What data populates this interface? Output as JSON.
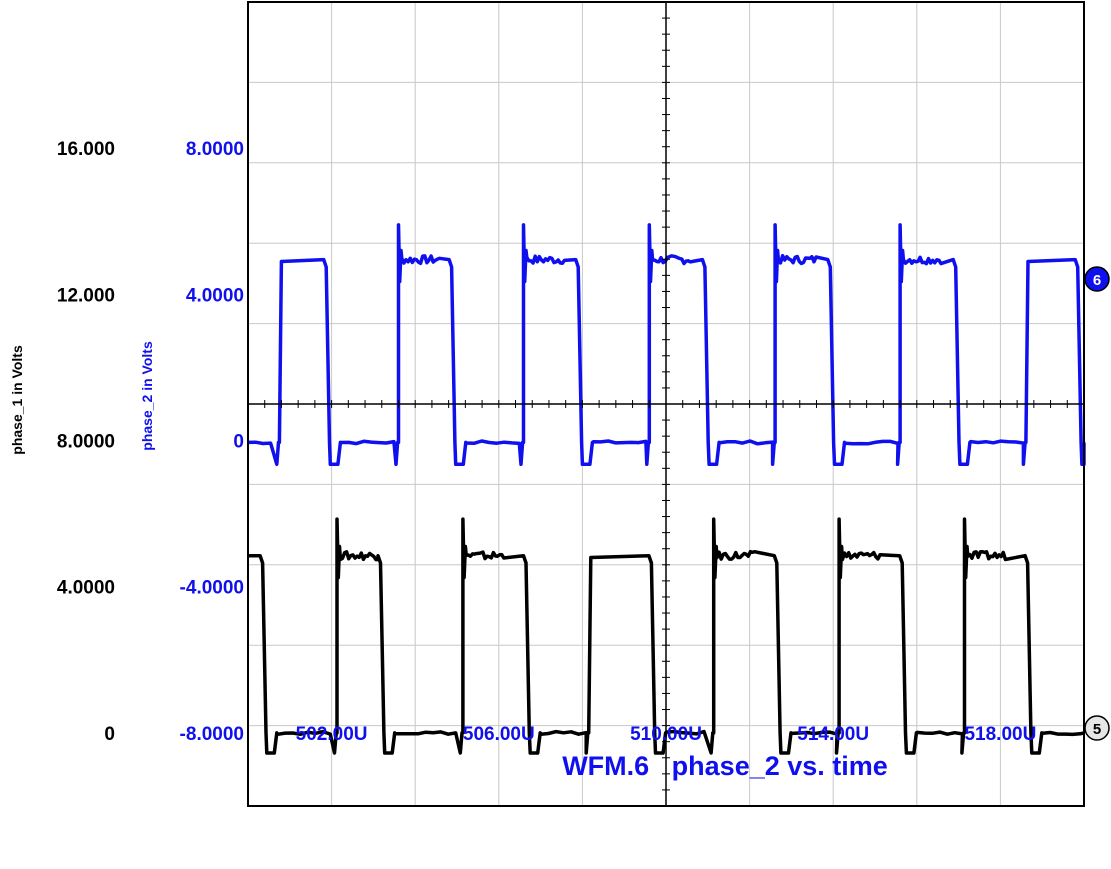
{
  "chart_data": {
    "type": "line",
    "title": "WFM.6   phase_2 vs. time",
    "x_range": [
      500.0,
      520.0
    ],
    "x_unit": "U",
    "x_ticks": [
      502,
      506,
      510,
      514,
      518
    ],
    "x_tick_labels": [
      "502.00U",
      "506.00U",
      "510.00U",
      "514.00U",
      "518.00U"
    ],
    "grid": true,
    "axes": [
      {
        "name": "phase_1",
        "label": "phase_1 in Volts",
        "color": "#000000",
        "range": [
          -2.0,
          20.0
        ],
        "tick_values": [
          0,
          4,
          8,
          12,
          16
        ],
        "tick_labels": [
          "0",
          "4.0000",
          "8.0000",
          "12.000",
          "16.000"
        ]
      },
      {
        "name": "phase_2",
        "label": "phase_2 in Volts",
        "color": "#1010ee",
        "range": [
          -10.0,
          12.0
        ],
        "tick_values": [
          -8,
          -4,
          0,
          4,
          8
        ],
        "tick_labels": [
          "-8.0000",
          "-4.0000",
          "0",
          "4.0000",
          "8.0000"
        ]
      }
    ],
    "series": [
      {
        "axis": "phase_2",
        "color": "#1010ee",
        "marker_label": "6",
        "low": -0.05,
        "high": 4.95,
        "undershoot": -0.65,
        "overshoot": 5.9,
        "pulses": [
          {
            "rise": 500.75,
            "fall": 501.87,
            "spike": false
          },
          {
            "rise": 503.6,
            "fall": 504.87,
            "spike": true
          },
          {
            "rise": 506.59,
            "fall": 507.9,
            "spike": true
          },
          {
            "rise": 509.6,
            "fall": 510.93,
            "spike": true
          },
          {
            "rise": 512.61,
            "fall": 513.93,
            "spike": true
          },
          {
            "rise": 515.6,
            "fall": 516.93,
            "spike": true
          },
          {
            "rise": 518.61,
            "fall": 519.85,
            "spike": false
          }
        ]
      },
      {
        "axis": "phase_1",
        "color": "#000000",
        "marker_label": "5",
        "low": 0.0,
        "high": 4.85,
        "undershoot": -0.55,
        "overshoot": 5.85,
        "start_high": true,
        "pulses": [
          {
            "rise": 499.5,
            "fall": 500.35,
            "spike": false
          },
          {
            "rise": 502.13,
            "fall": 503.17,
            "spike": true
          },
          {
            "rise": 505.14,
            "fall": 506.65,
            "spike": true
          },
          {
            "rise": 508.15,
            "fall": 509.65,
            "spike": false
          },
          {
            "rise": 511.14,
            "fall": 512.65,
            "spike": true
          },
          {
            "rise": 514.14,
            "fall": 515.65,
            "spike": true
          },
          {
            "rise": 517.14,
            "fall": 518.65,
            "spike": true
          }
        ]
      }
    ]
  }
}
